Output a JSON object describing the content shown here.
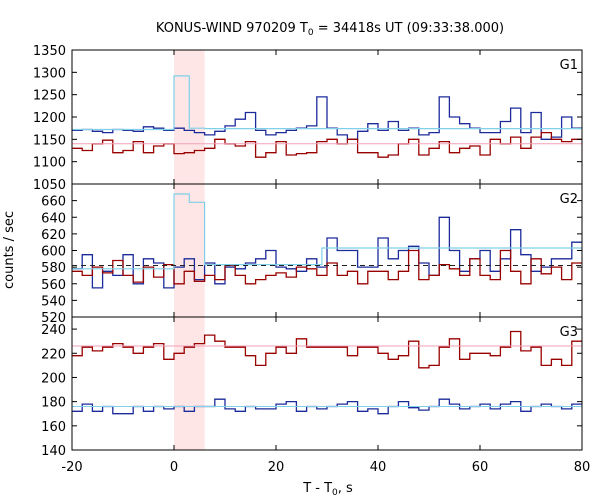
{
  "chart_data": {
    "type": "line",
    "title": "KONUS-WIND 970209 T",
    "title_sub": "0",
    "title_rest": " = 34418s UT (09:33:38.000)",
    "xlabel": "T - T",
    "xlabel_sub": "0",
    "xlabel_rest": ", s",
    "ylabel": "counts / sec",
    "xlim": [
      -20,
      80
    ],
    "xticks": [
      "-20",
      "0",
      "20",
      "40",
      "60",
      "80"
    ],
    "highlight": {
      "x_from": 0,
      "x_to": 6,
      "color": "#ffe6e6"
    },
    "colors": {
      "blue": "#1c2b9a",
      "red": "#990000",
      "cyan": "#7fd0e8",
      "pink": "#f2a0b8",
      "dash": "#222222"
    },
    "panels": [
      {
        "name": "G1",
        "ylim": [
          1050,
          1350
        ],
        "yticks": [
          "1050",
          "1100",
          "1150",
          "1200",
          "1250",
          "1300",
          "1350"
        ],
        "series": [
          {
            "color": "blue",
            "type": "step",
            "x0": -20,
            "dx": 2,
            "values": [
              1170,
              1172,
              1168,
              1165,
              1172,
              1170,
              1168,
              1178,
              1175,
              1170,
              1175,
              1170,
              1165,
              1160,
              1168,
              1180,
              1195,
              1210,
              1170,
              1160,
              1165,
              1170,
              1175,
              1180,
              1245,
              1175,
              1160,
              1150,
              1168,
              1185,
              1170,
              1190,
              1170,
              1175,
              1160,
              1165,
              1245,
              1200,
              1185,
              1175,
              1165,
              1165,
              1190,
              1220,
              1165,
              1210,
              1150,
              1155,
              1200,
              1175
            ]
          },
          {
            "color": "red",
            "type": "step",
            "x0": -20,
            "dx": 2,
            "values": [
              1130,
              1125,
              1140,
              1148,
              1120,
              1125,
              1145,
              1120,
              1135,
              1140,
              1118,
              1120,
              1125,
              1130,
              1150,
              1140,
              1135,
              1145,
              1110,
              1120,
              1145,
              1115,
              1118,
              1120,
              1145,
              1150,
              1140,
              1150,
              1120,
              1120,
              1110,
              1115,
              1140,
              1150,
              1115,
              1130,
              1145,
              1120,
              1130,
              1135,
              1115,
              1150,
              1140,
              1155,
              1130,
              1155,
              1165,
              1150,
              1145,
              1150
            ]
          },
          {
            "color": "cyan",
            "type": "step",
            "x": [
              -20,
              0,
              3,
              6,
              67,
              80
            ],
            "values": [
              1172,
              1292,
              1175,
              1174,
              1174
            ]
          },
          {
            "color": "pink",
            "type": "hline",
            "values": [
              1140
            ]
          }
        ]
      },
      {
        "name": "G2",
        "ylim": [
          520,
          680
        ],
        "yticks": [
          "520",
          "540",
          "560",
          "580",
          "600",
          "620",
          "640",
          "660"
        ],
        "series": [
          {
            "color": "blue",
            "type": "step",
            "x0": -20,
            "dx": 2,
            "values": [
              578,
              595,
              555,
              575,
              570,
              595,
              560,
              590,
              585,
              555,
              580,
              590,
              565,
              585,
              560,
              580,
              578,
              585,
              590,
              600,
              580,
              578,
              575,
              590,
              580,
              615,
              600,
              600,
              580,
              580,
              615,
              590,
              600,
              605,
              585,
              570,
              640,
              600,
              575,
              590,
              600,
              575,
              590,
              625,
              595,
              575,
              580,
              590,
              590,
              610
            ]
          },
          {
            "color": "red",
            "type": "step",
            "x0": -20,
            "dx": 2,
            "values": [
              575,
              570,
              580,
              573,
              588,
              570,
              562,
              580,
              568,
              583,
              560,
              575,
              563,
              570,
              565,
              582,
              570,
              560,
              565,
              570,
              573,
              568,
              580,
              578,
              570,
              585,
              570,
              575,
              560,
              575,
              575,
              565,
              575,
              600,
              565,
              570,
              583,
              578,
              570,
              590,
              570,
              565,
              600,
              575,
              560,
              590,
              572,
              580,
              565,
              585
            ]
          },
          {
            "color": "cyan",
            "type": "step",
            "x": [
              -20,
              0,
              3,
              6,
              29,
              80
            ],
            "values": [
              578,
              668,
              658,
              583,
              603
            ]
          },
          {
            "color": "dash",
            "type": "hline",
            "values": [
              582
            ]
          }
        ]
      },
      {
        "name": "G3",
        "ylim": [
          140,
          250
        ],
        "yticks": [
          "140",
          "160",
          "180",
          "200",
          "220",
          "240"
        ],
        "series": [
          {
            "color": "red",
            "type": "step",
            "x0": -20,
            "dx": 2,
            "values": [
              218,
              225,
              222,
              225,
              228,
              225,
              220,
              225,
              228,
              215,
              220,
              225,
              228,
              235,
              230,
              225,
              225,
              218,
              210,
              220,
              225,
              220,
              232,
              225,
              225,
              225,
              225,
              218,
              225,
              225,
              220,
              215,
              218,
              230,
              208,
              210,
              225,
              232,
              215,
              220,
              220,
              218,
              225,
              238,
              222,
              225,
              210,
              215,
              210,
              230
            ]
          },
          {
            "color": "blue",
            "type": "step",
            "x0": -20,
            "dx": 2,
            "values": [
              172,
              178,
              172,
              176,
              170,
              170,
              176,
              172,
              176,
              174,
              176,
              172,
              176,
              176,
              182,
              174,
              172,
              176,
              174,
              174,
              178,
              180,
              172,
              176,
              174,
              176,
              178,
              180,
              172,
              174,
              170,
              176,
              180,
              175,
              173,
              176,
              182,
              178,
              174,
              176,
              178,
              174,
              178,
              180,
              172,
              176,
              178,
              176,
              174,
              178
            ]
          },
          {
            "color": "pink",
            "type": "hline",
            "values": [
              226
            ]
          },
          {
            "color": "cyan",
            "type": "hline",
            "values": [
              176
            ]
          }
        ]
      }
    ]
  }
}
